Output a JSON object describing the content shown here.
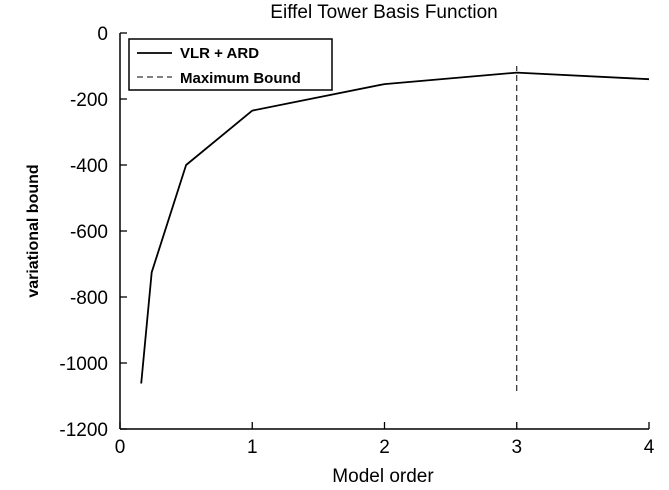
{
  "chart_data": {
    "type": "line",
    "title": "Eiffel Tower Basis Function",
    "xlabel": "Model order",
    "ylabel": "variational bound",
    "xlim": [
      0,
      4
    ],
    "ylim": [
      -1200,
      0
    ],
    "xticks": [
      0,
      1,
      2,
      3,
      4
    ],
    "xtick_labels": [
      "0",
      "1",
      "2",
      "3",
      "4"
    ],
    "yticks": [
      0,
      -200,
      -400,
      -600,
      -800,
      -1000,
      -1200
    ],
    "ytick_labels": [
      "0",
      "-200",
      "-400",
      "-600",
      "-800",
      "-1000",
      "-1200"
    ],
    "grid": false,
    "legend_position": "top-left",
    "series": [
      {
        "name": "VLR + ARD",
        "style": "solid",
        "color": "#000000",
        "x": [
          0.16,
          0.24,
          0.5,
          1,
          2,
          3,
          4
        ],
        "y": [
          -1062,
          -725,
          -400,
          -235,
          -155,
          -120,
          -140
        ]
      }
    ],
    "vlines": [
      {
        "name": "Maximum Bound",
        "style": "dashed",
        "color": "#000000",
        "x": 3,
        "y": [
          -1085,
          -100
        ]
      }
    ]
  }
}
